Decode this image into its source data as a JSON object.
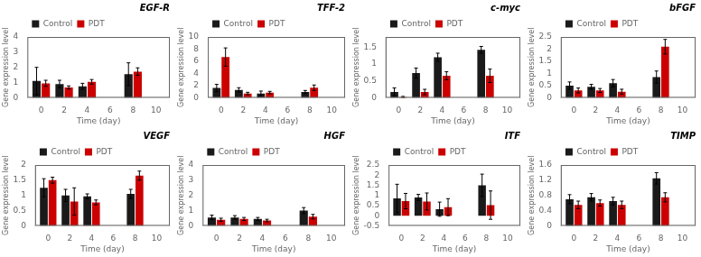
{
  "chart_data": [
    {
      "type": "bar",
      "title": "EGF-R",
      "x": [
        0,
        2,
        4,
        8
      ],
      "series": [
        {
          "name": "Control",
          "color": "#1a1a1a",
          "values": [
            1.1,
            0.9,
            0.75,
            1.55
          ],
          "errors": [
            0.9,
            0.25,
            0.2,
            0.75
          ]
        },
        {
          "name": "PDT",
          "color": "#cc0000",
          "values": [
            0.95,
            0.68,
            1.05,
            1.72
          ],
          "errors": [
            0.2,
            0.1,
            0.15,
            0.25
          ]
        }
      ],
      "xlim": [
        -1.2,
        11.2
      ],
      "xticks": [
        0,
        2,
        4,
        6,
        8,
        10
      ],
      "ylim": [
        0,
        4
      ],
      "yticks": [
        0,
        1,
        2,
        3,
        4
      ],
      "xlabel": "Time (day)",
      "ylabel": "Gene expression level",
      "legend": "upper left",
      "grid": false
    },
    {
      "type": "bar",
      "title": "TFF-2",
      "x": [
        0,
        2,
        4,
        8
      ],
      "series": [
        {
          "name": "Control",
          "color": "#1a1a1a",
          "values": [
            1.6,
            1.3,
            0.7,
            0.95
          ],
          "errors": [
            0.6,
            0.35,
            0.4,
            0.25
          ]
        },
        {
          "name": "PDT",
          "color": "#cc0000",
          "values": [
            6.7,
            0.7,
            0.85,
            1.65
          ],
          "errors": [
            1.5,
            0.2,
            0.2,
            0.45
          ]
        }
      ],
      "xlim": [
        -1.2,
        11.2
      ],
      "xticks": [
        0,
        2,
        4,
        6,
        8,
        10
      ],
      "ylim": [
        0,
        10
      ],
      "yticks": [
        0,
        2,
        4,
        6,
        8,
        10
      ],
      "xlabel": "Time (day)",
      "ylabel": "Gene expression level",
      "legend": "upper left",
      "grid": false
    },
    {
      "type": "bar",
      "title": "c-myc",
      "x": [
        0,
        2,
        4,
        8
      ],
      "series": [
        {
          "name": "Control",
          "color": "#1a1a1a",
          "values": [
            0.17,
            0.73,
            1.2,
            1.42
          ],
          "errors": [
            0.12,
            0.15,
            0.12,
            0.1
          ]
        },
        {
          "name": "PDT",
          "color": "#cc0000",
          "values": [
            0.02,
            0.17,
            0.65,
            0.65
          ],
          "errors": [
            0.02,
            0.08,
            0.12,
            0.2
          ]
        }
      ],
      "xlim": [
        -1.2,
        11.2
      ],
      "xticks": [
        0,
        2,
        4,
        6,
        8,
        10
      ],
      "ylim": [
        0,
        1.8
      ],
      "yticks": [
        0,
        0.5,
        1,
        1.5
      ],
      "xlabel": "Time (day)",
      "ylabel": "Gene expression level",
      "legend": "upper left",
      "grid": false
    },
    {
      "type": "bar",
      "title": "bFGF",
      "x": [
        0,
        2,
        4,
        8
      ],
      "series": [
        {
          "name": "Control",
          "color": "#1a1a1a",
          "values": [
            0.5,
            0.45,
            0.6,
            0.85
          ],
          "errors": [
            0.15,
            0.1,
            0.15,
            0.25
          ]
        },
        {
          "name": "PDT",
          "color": "#cc0000",
          "values": [
            0.3,
            0.3,
            0.25,
            2.1
          ],
          "errors": [
            0.1,
            0.08,
            0.1,
            0.3
          ]
        }
      ],
      "xlim": [
        -1.2,
        11.2
      ],
      "xticks": [
        0,
        2,
        4,
        6,
        8,
        10
      ],
      "ylim": [
        0,
        2.5
      ],
      "yticks": [
        0,
        0.5,
        1,
        1.5,
        2,
        2.5
      ],
      "xlabel": "Time (day)",
      "ylabel": "Gene expression level",
      "legend": "upper left",
      "grid": false
    },
    {
      "type": "bar",
      "title": "VEGF",
      "x": [
        0,
        2,
        4,
        8
      ],
      "series": [
        {
          "name": "Control",
          "color": "#1a1a1a",
          "values": [
            1.25,
            1.0,
            0.97,
            1.05
          ],
          "errors": [
            0.3,
            0.2,
            0.08,
            0.15
          ]
        },
        {
          "name": "PDT",
          "color": "#cc0000",
          "values": [
            1.5,
            0.8,
            0.77,
            1.65
          ],
          "errors": [
            0.1,
            0.45,
            0.08,
            0.15
          ]
        }
      ],
      "xlim": [
        -1.2,
        11.2
      ],
      "xticks": [
        0,
        2,
        4,
        6,
        8,
        10
      ],
      "ylim": [
        0,
        2
      ],
      "yticks": [
        0,
        0.5,
        1,
        1.5,
        2
      ],
      "xlabel": "Time (day)",
      "ylabel": "Gene expression level",
      "legend": "upper left",
      "grid": false
    },
    {
      "type": "bar",
      "title": "HGF",
      "x": [
        0,
        2,
        4,
        8
      ],
      "series": [
        {
          "name": "Control",
          "color": "#1a1a1a",
          "values": [
            0.55,
            0.55,
            0.45,
            1.0
          ],
          "errors": [
            0.15,
            0.12,
            0.1,
            0.2
          ]
        },
        {
          "name": "PDT",
          "color": "#cc0000",
          "values": [
            0.4,
            0.45,
            0.35,
            0.6
          ],
          "errors": [
            0.1,
            0.1,
            0.08,
            0.15
          ]
        }
      ],
      "xlim": [
        -1.2,
        11.2
      ],
      "xticks": [
        0,
        2,
        4,
        6,
        8,
        10
      ],
      "ylim": [
        0,
        4
      ],
      "yticks": [
        0,
        1,
        2,
        3,
        4
      ],
      "xlabel": "Time (day)",
      "ylabel": "Gene expression level",
      "legend": "upper left",
      "grid": false
    },
    {
      "type": "bar",
      "title": "ITF",
      "x": [
        0,
        2,
        4,
        8
      ],
      "series": [
        {
          "name": "Control",
          "color": "#1a1a1a",
          "values": [
            0.85,
            0.9,
            0.32,
            1.5
          ],
          "errors": [
            0.7,
            0.15,
            0.35,
            0.55
          ]
        },
        {
          "name": "PDT",
          "color": "#cc0000",
          "values": [
            0.72,
            0.7,
            0.42,
            0.52
          ],
          "errors": [
            0.38,
            0.42,
            0.42,
            0.7
          ]
        }
      ],
      "xlim": [
        -1.2,
        11.2
      ],
      "xticks": [
        0,
        2,
        4,
        6,
        8,
        10
      ],
      "ylim": [
        -0.5,
        2.5
      ],
      "yticks": [
        -0.5,
        0,
        0.5,
        1,
        1.5,
        2,
        2.5
      ],
      "xlabel": "Time (day)",
      "ylabel": "Gene expression level",
      "legend": "upper left",
      "grid": false
    },
    {
      "type": "bar",
      "title": "TIMP",
      "x": [
        0,
        2,
        4,
        8
      ],
      "series": [
        {
          "name": "Control",
          "color": "#1a1a1a",
          "values": [
            0.7,
            0.75,
            0.65,
            1.25
          ],
          "errors": [
            0.12,
            0.1,
            0.1,
            0.15
          ]
        },
        {
          "name": "PDT",
          "color": "#cc0000",
          "values": [
            0.55,
            0.6,
            0.55,
            0.75
          ],
          "errors": [
            0.1,
            0.08,
            0.1,
            0.12
          ]
        }
      ],
      "xlim": [
        -1.2,
        11.2
      ],
      "xticks": [
        0,
        2,
        4,
        6,
        8,
        10
      ],
      "ylim": [
        0,
        1.6
      ],
      "yticks": [
        0,
        0.4,
        0.8,
        1.2,
        1.6
      ],
      "xlabel": "Time (day)",
      "ylabel": "Gene expression level",
      "legend": "upper left",
      "grid": false
    }
  ]
}
